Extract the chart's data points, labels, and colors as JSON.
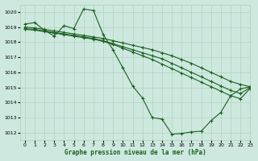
{
  "title": "Graphe pression niveau de la mer (hPa)",
  "bg_color": "#cde8de",
  "grid_color": "#b0ccb8",
  "line_color": "#1a6020",
  "xlim": [
    -0.5,
    23
  ],
  "ylim": [
    1011.5,
    1020.5
  ],
  "yticks": [
    1012,
    1013,
    1014,
    1015,
    1016,
    1017,
    1018,
    1019,
    1020
  ],
  "xticks": [
    0,
    1,
    2,
    3,
    4,
    5,
    6,
    7,
    8,
    9,
    10,
    11,
    12,
    13,
    14,
    15,
    16,
    17,
    18,
    19,
    20,
    21,
    22,
    23
  ],
  "series": [
    {
      "x": [
        0,
        1,
        2,
        3,
        4,
        5,
        6,
        7,
        8,
        9,
        10,
        11,
        12,
        13,
        14,
        15,
        16,
        17,
        18,
        19,
        20,
        21,
        22,
        23
      ],
      "y": [
        1019.2,
        1019.3,
        1018.8,
        1018.4,
        1019.1,
        1018.9,
        1020.2,
        1020.1,
        1018.5,
        1017.5,
        1016.3,
        1015.1,
        1014.3,
        1013.0,
        1012.9,
        1011.9,
        1011.95,
        1012.05,
        1012.1,
        1012.8,
        1013.35,
        1014.45,
        1014.9,
        1015.05
      ]
    },
    {
      "x": [
        0,
        1,
        2,
        3,
        4,
        5,
        6,
        7,
        8,
        9,
        10,
        11,
        12,
        13,
        14,
        15,
        16,
        17,
        18,
        19,
        20,
        21,
        22,
        23
      ],
      "y": [
        1019.0,
        1018.95,
        1018.85,
        1018.75,
        1018.65,
        1018.55,
        1018.45,
        1018.35,
        1018.25,
        1018.1,
        1017.95,
        1017.8,
        1017.65,
        1017.5,
        1017.3,
        1017.1,
        1016.85,
        1016.6,
        1016.3,
        1016.0,
        1015.7,
        1015.4,
        1015.2,
        1015.05
      ]
    },
    {
      "x": [
        0,
        1,
        2,
        3,
        4,
        5,
        6,
        7,
        8,
        9,
        10,
        11,
        12,
        13,
        14,
        15,
        16,
        17,
        18,
        19,
        20,
        21,
        22,
        23
      ],
      "y": [
        1018.9,
        1018.85,
        1018.75,
        1018.65,
        1018.55,
        1018.45,
        1018.35,
        1018.25,
        1018.1,
        1017.9,
        1017.7,
        1017.5,
        1017.3,
        1017.1,
        1016.9,
        1016.6,
        1016.3,
        1016.0,
        1015.7,
        1015.4,
        1015.1,
        1014.8,
        1014.6,
        1015.0
      ]
    },
    {
      "x": [
        0,
        1,
        2,
        3,
        4,
        5,
        6,
        7,
        8,
        9,
        10,
        11,
        12,
        13,
        14,
        15,
        16,
        17,
        18,
        19,
        20,
        21,
        22,
        23
      ],
      "y": [
        1018.85,
        1018.8,
        1018.7,
        1018.6,
        1018.5,
        1018.4,
        1018.3,
        1018.2,
        1018.05,
        1017.85,
        1017.6,
        1017.35,
        1017.1,
        1016.85,
        1016.55,
        1016.25,
        1015.95,
        1015.65,
        1015.35,
        1015.05,
        1014.75,
        1014.45,
        1014.25,
        1014.95
      ]
    }
  ]
}
